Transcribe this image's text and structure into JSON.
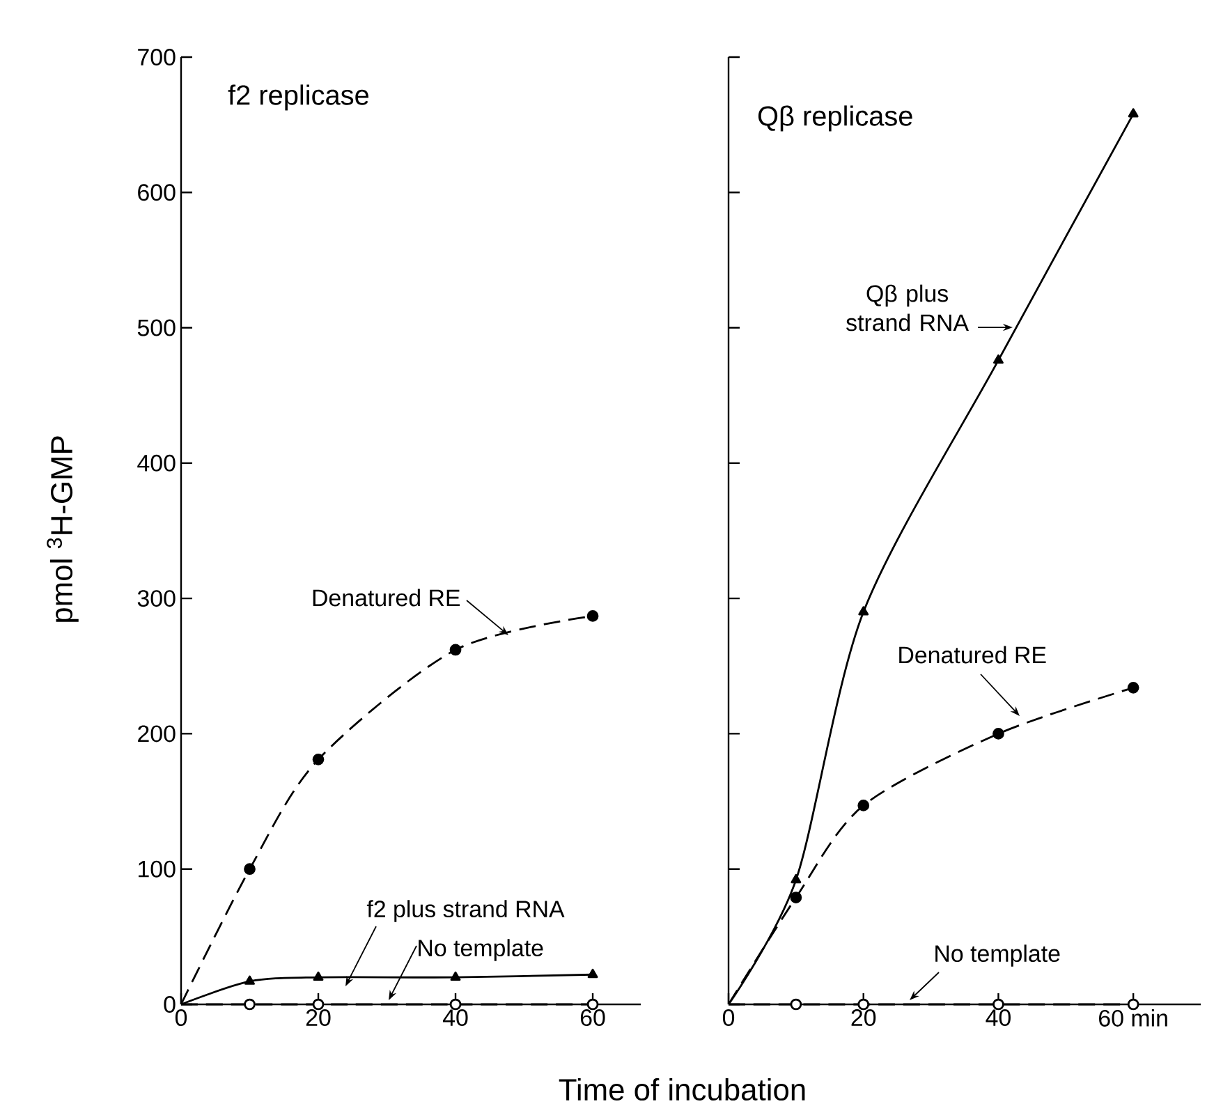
{
  "chart_data": [
    {
      "type": "line",
      "title": "f2 replicase",
      "xlabel": "Time of incubation",
      "ylabel": "pmol $^{3}$H-GMP",
      "xlim": [
        0,
        67
      ],
      "ylim": [
        0,
        700
      ],
      "xticks": [
        0,
        20,
        40,
        60
      ],
      "yticks": [
        0,
        100,
        200,
        300,
        400,
        500,
        600,
        700
      ],
      "grid": false,
      "series": [
        {
          "name": "Denatured RE",
          "color": "#000000",
          "marker": "circle",
          "line_style": "dashed",
          "x": [
            0,
            10,
            20,
            40,
            60
          ],
          "values": [
            0,
            100,
            181,
            262,
            287
          ]
        },
        {
          "name": "f2 plus strand RNA",
          "color": "#000000",
          "marker": "triangle",
          "line_style": "solid",
          "x": [
            0,
            10,
            20,
            40,
            60
          ],
          "values": [
            0,
            17,
            20,
            20,
            22
          ]
        },
        {
          "name": "No template",
          "color": "#000000",
          "marker": "circle",
          "line_style": "dashed",
          "x": [
            0,
            10,
            20,
            40,
            60
          ],
          "values": [
            0,
            0,
            0,
            0,
            0
          ]
        }
      ]
    },
    {
      "type": "line",
      "title": "Qβ replicase",
      "xlim": [
        0,
        70
      ],
      "ylim": [
        0,
        700
      ],
      "xticks": [
        0,
        20,
        40,
        {
          "value": 60,
          "label": "60 min"
        }
      ],
      "yticks": [
        0,
        100,
        200,
        300,
        400,
        500,
        600,
        700
      ],
      "tick_labels": "x",
      "grid": false,
      "series": [
        {
          "name": "Qβ plus strand RNA",
          "color": "#000000",
          "marker": "triangle",
          "line_style": "solid",
          "x": [
            0,
            10,
            20,
            40,
            60
          ],
          "values": [
            0,
            92,
            290,
            476,
            658
          ]
        },
        {
          "name": "Denatured RE",
          "color": "#000000",
          "marker": "circle",
          "line_style": "dashed",
          "x": [
            0,
            10,
            20,
            40,
            60
          ],
          "values": [
            0,
            79,
            147,
            200,
            234
          ]
        },
        {
          "name": "No template",
          "color": "#000000",
          "marker": "circle",
          "line_style": "dashed",
          "x": [
            0,
            10,
            20,
            40,
            60
          ],
          "values": [
            0,
            0,
            0,
            0,
            0
          ]
        }
      ]
    }
  ]
}
